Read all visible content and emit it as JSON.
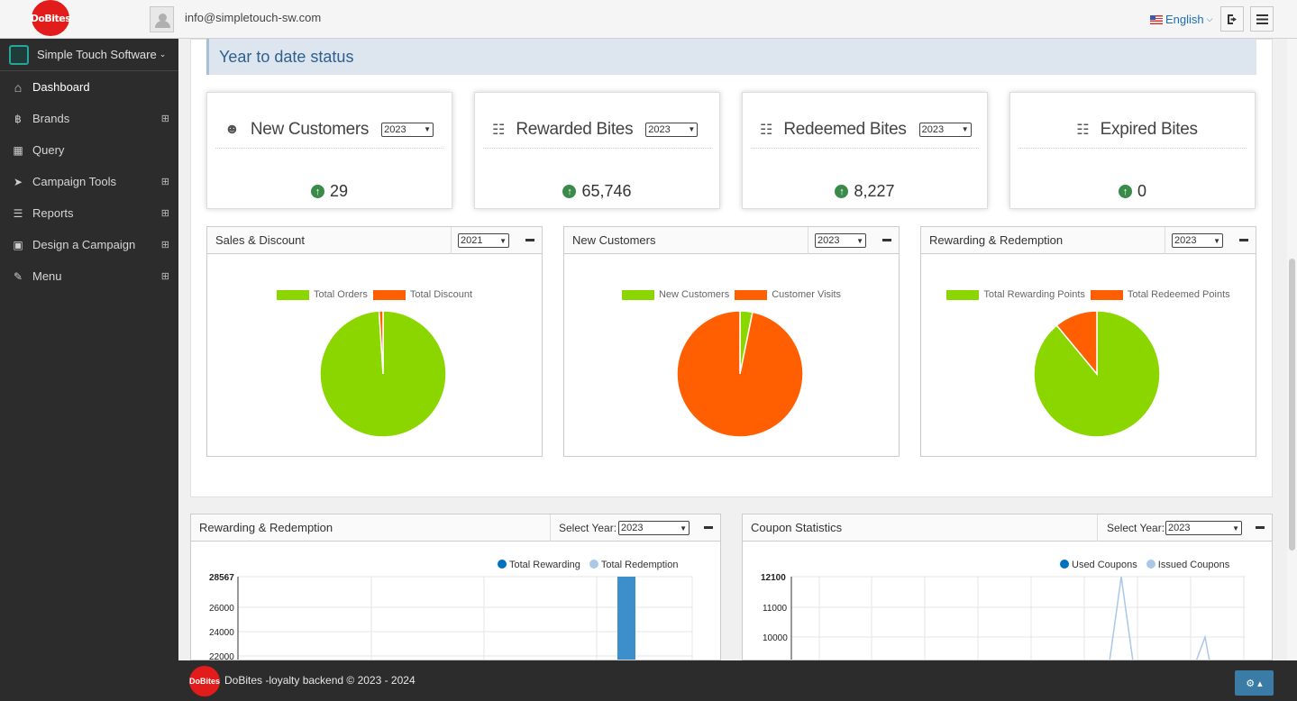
{
  "topbar": {
    "logo_text": "DoBites",
    "email": "info@simpletouch-sw.com",
    "language": "English"
  },
  "sidebar": {
    "org": "Simple Touch Software",
    "items": [
      {
        "label": "Dashboard",
        "icon": "home-icon",
        "expandable": false
      },
      {
        "label": "Brands",
        "icon": "bitcoin-icon",
        "expandable": true
      },
      {
        "label": "Query",
        "icon": "puzzle-icon",
        "expandable": false
      },
      {
        "label": "Campaign Tools",
        "icon": "paper-plane-icon",
        "expandable": true
      },
      {
        "label": "Reports",
        "icon": "database-icon",
        "expandable": true
      },
      {
        "label": "Design a Campaign",
        "icon": "briefcase-icon",
        "expandable": true
      },
      {
        "label": "Menu",
        "icon": "edit-icon",
        "expandable": true
      }
    ]
  },
  "ytd": {
    "title": "Year to date status",
    "cards": [
      {
        "title": "New Customers",
        "year": "2023",
        "value": "29",
        "icon": "users-icon"
      },
      {
        "title": "Rewarded Bites",
        "year": "2023",
        "value": "65,746",
        "icon": "gift-icon"
      },
      {
        "title": "Redeemed Bites",
        "year": "2023",
        "value": "8,227",
        "icon": "gift-icon"
      },
      {
        "title": "Expired Bites",
        "year": "",
        "value": "0",
        "icon": "gift-icon"
      }
    ]
  },
  "chart_data": [
    {
      "type": "pie",
      "title": "Sales & Discount",
      "year": "2021",
      "labels": [
        "Total Orders",
        "Total Discount"
      ],
      "values": [
        99,
        1
      ],
      "colors": [
        "#8cd600",
        "#ff5f00"
      ]
    },
    {
      "type": "pie",
      "title": "New Customers",
      "year": "2023",
      "labels": [
        "New Customers",
        "Customer Visits"
      ],
      "values": [
        3.2,
        96.8
      ],
      "colors": [
        "#8cd600",
        "#ff5f00"
      ]
    },
    {
      "type": "pie",
      "title": "Rewarding & Redemption",
      "year": "2023",
      "labels": [
        "Total Rewarding Points",
        "Total Redeemed Points"
      ],
      "values": [
        89,
        11
      ],
      "colors": [
        "#8cd600",
        "#ff5f00"
      ]
    },
    {
      "type": "bar",
      "title": "Rewarding & Redemption",
      "year": "2023",
      "select_label": "Select Year:",
      "series": [
        {
          "name": "Total Rewarding",
          "color": "#0070c0"
        },
        {
          "name": "Total Redemption",
          "color": "#a9c8e8"
        }
      ],
      "y_ticks": [
        "28567",
        "26000",
        "24000",
        "22000"
      ],
      "ylim": [
        22000,
        28567
      ],
      "bar_value": 28567
    },
    {
      "type": "line",
      "title": "Coupon Statistics",
      "year": "2023",
      "select_label": "Select Year:",
      "series": [
        {
          "name": "Used Coupons",
          "color": "#0070c0"
        },
        {
          "name": "Issued Coupons",
          "color": "#a9c8e8"
        }
      ],
      "y_ticks": [
        "12100",
        "11000",
        "10000"
      ],
      "ylim": [
        9400,
        12100
      ]
    }
  ],
  "footer": {
    "text": "DoBites -loyalty backend © 2023 - 2024",
    "logo_text": "DoBites"
  }
}
